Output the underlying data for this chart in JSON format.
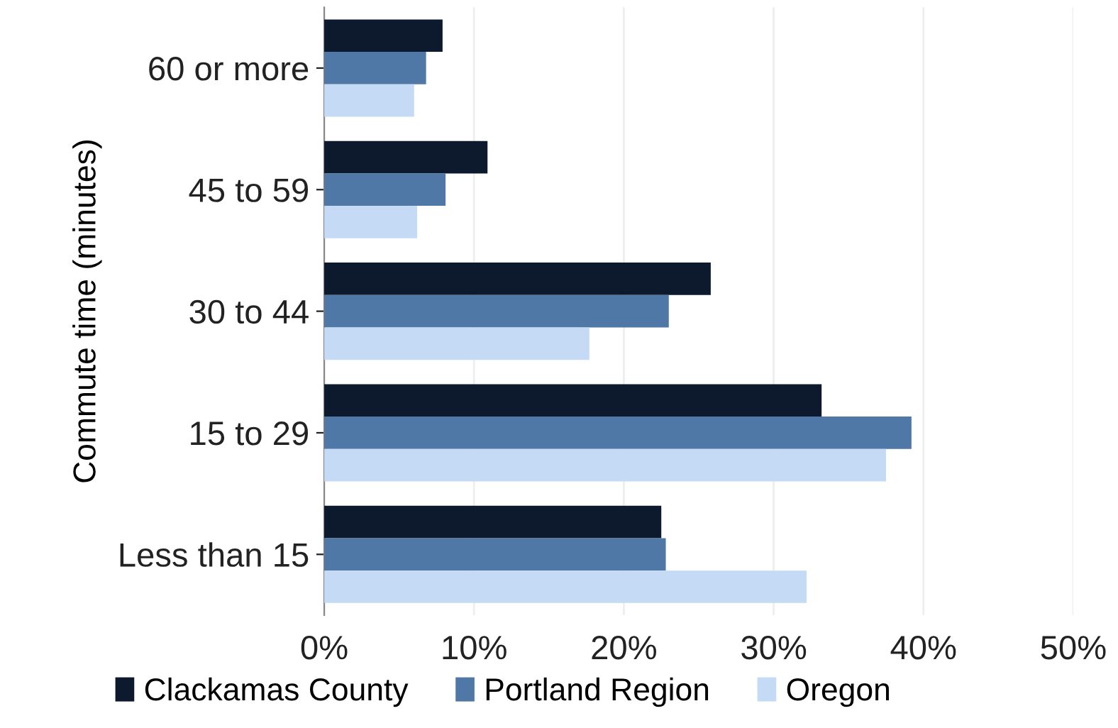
{
  "chart_data": {
    "type": "bar",
    "orientation": "horizontal",
    "ylabel": "Commute time (minutes)",
    "categories": [
      "60 or more",
      "45 to 59",
      "30 to 44",
      "15 to 29",
      "Less than 15"
    ],
    "series": [
      {
        "name": "Clackamas County",
        "color": "#0d1a2e",
        "values": [
          7.9,
          10.9,
          25.8,
          33.2,
          22.5
        ]
      },
      {
        "name": "Portland Region",
        "color": "#4f78a6",
        "values": [
          6.8,
          8.1,
          23.0,
          39.2,
          22.8
        ]
      },
      {
        "name": "Oregon",
        "color": "#c5daf5",
        "values": [
          6.0,
          6.2,
          17.7,
          37.5,
          32.2
        ]
      }
    ],
    "xlim": [
      0,
      50
    ],
    "xticks": [
      {
        "value": 0,
        "label": "0%"
      },
      {
        "value": 10,
        "label": "10%"
      },
      {
        "value": 20,
        "label": "20%"
      },
      {
        "value": 30,
        "label": "30%"
      },
      {
        "value": 40,
        "label": "40%"
      },
      {
        "value": 50,
        "label": "50%"
      }
    ],
    "grid": "x",
    "legend": "bottom"
  }
}
